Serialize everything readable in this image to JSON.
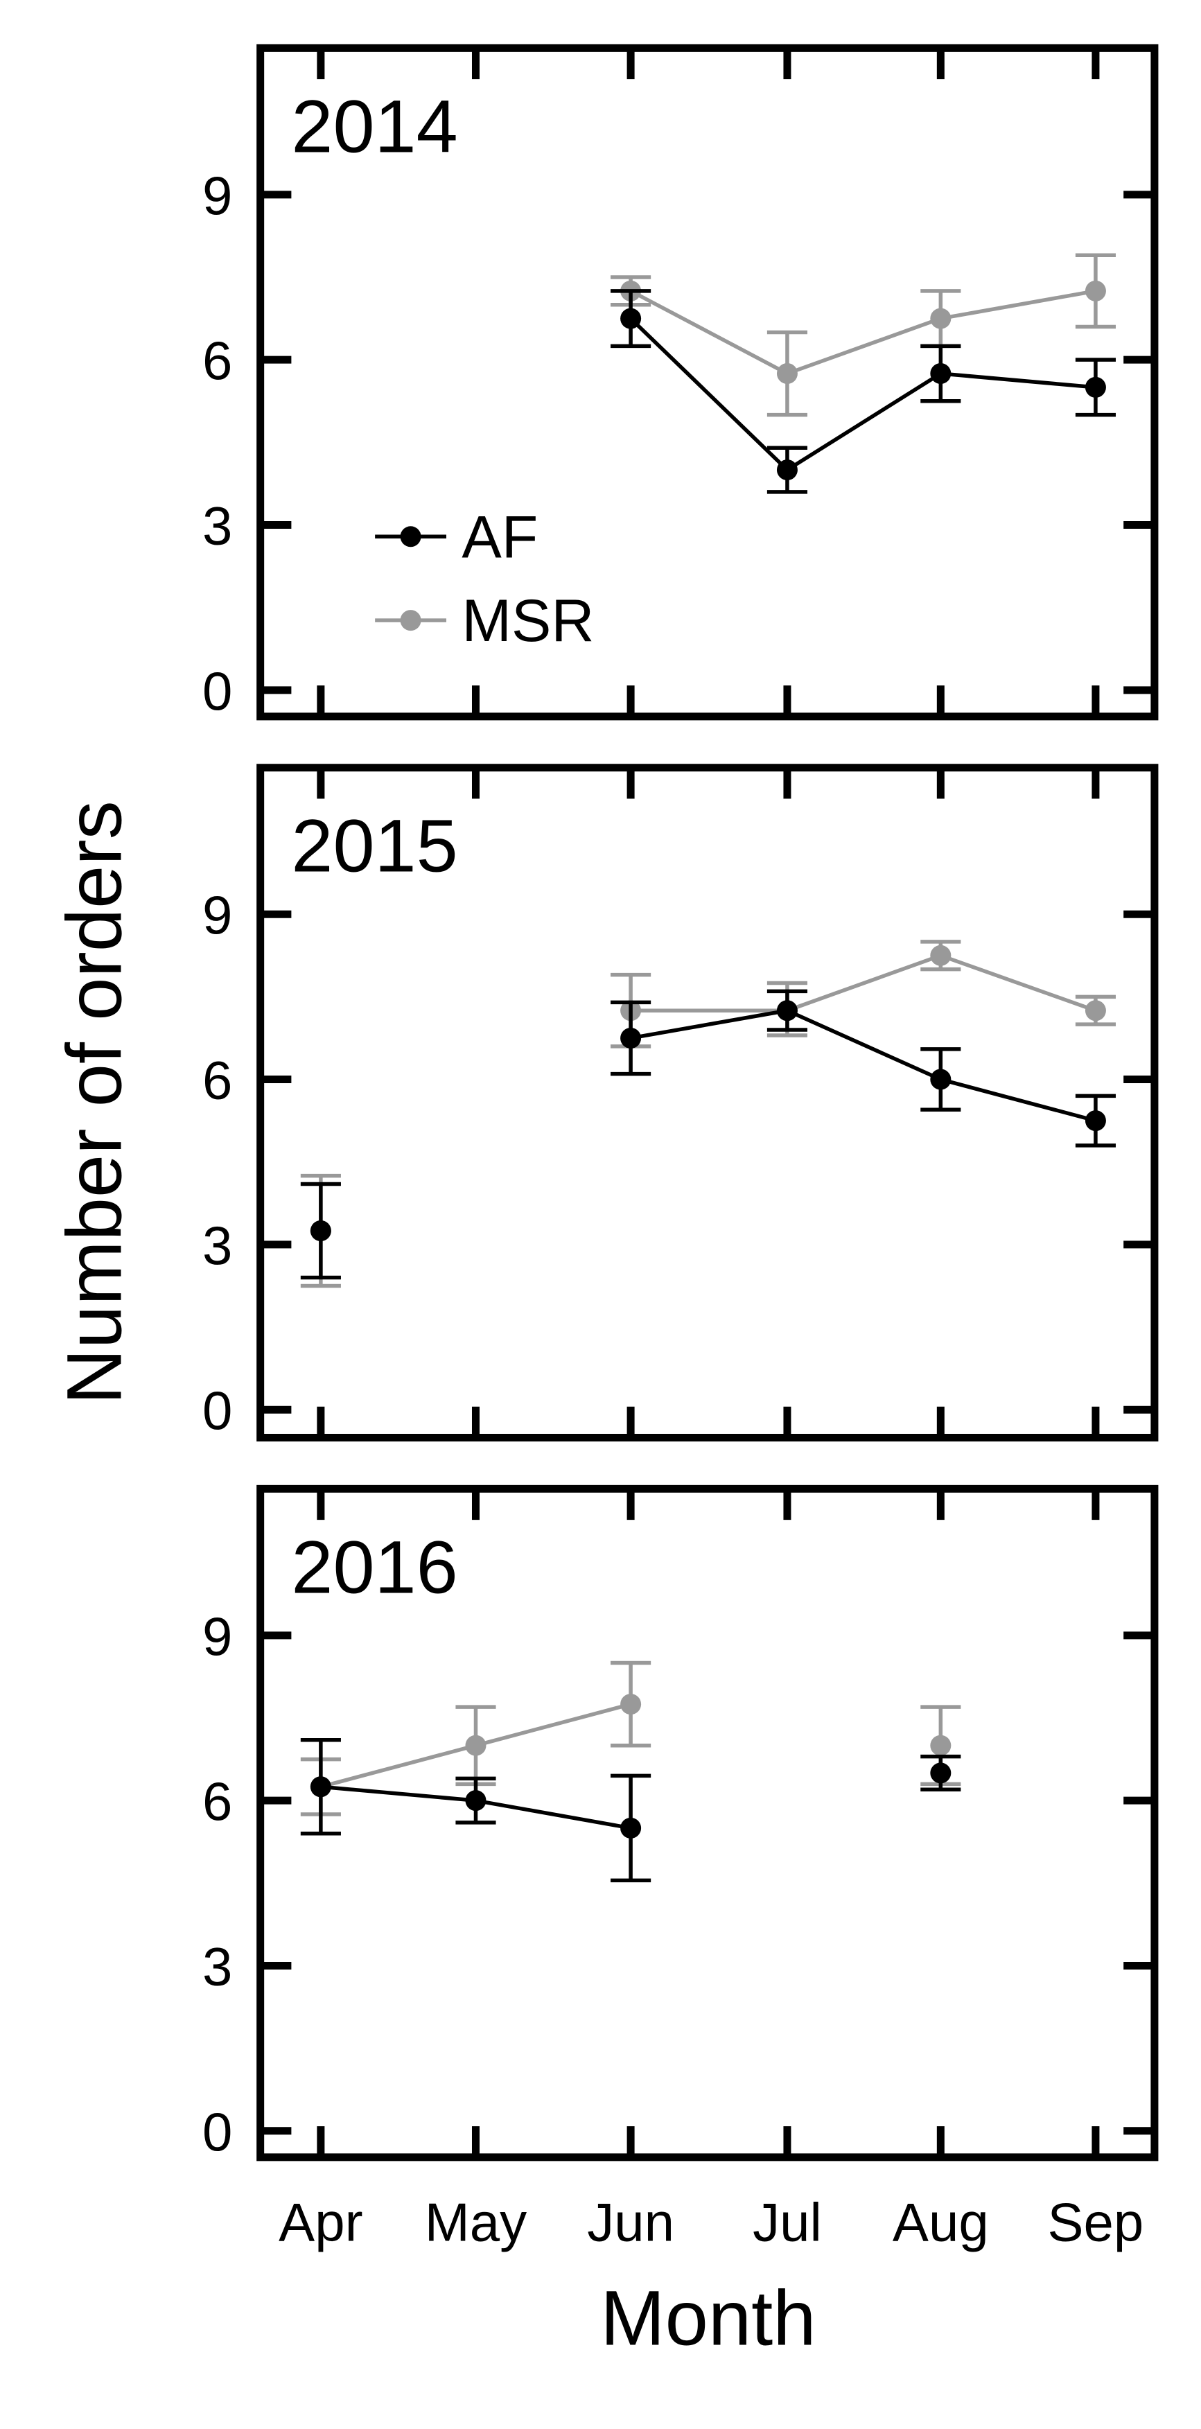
{
  "chart_data": {
    "type": "line",
    "ylabel": "Number of orders",
    "xlabel": "Month",
    "categories": [
      "Apr",
      "May",
      "Jun",
      "Jul",
      "Aug",
      "Sep"
    ],
    "ylim": [
      -0.5,
      11.7
    ],
    "yticks": [
      0,
      3,
      6,
      9
    ],
    "legend": {
      "placement": "lower-left of first panel",
      "entries": [
        "AF",
        "MSR"
      ]
    },
    "series_colors": {
      "AF": "#000000",
      "MSR": "#999999"
    },
    "panels": [
      {
        "year": "2014",
        "series": [
          {
            "name": "AF",
            "values": [
              null,
              null,
              6.75,
              4.0,
              5.75,
              5.5
            ],
            "err_low": [
              null,
              null,
              6.25,
              3.6,
              5.25,
              5.0
            ],
            "err_high": [
              null,
              null,
              7.25,
              4.4,
              6.25,
              6.0
            ]
          },
          {
            "name": "MSR",
            "values": [
              null,
              null,
              7.25,
              5.75,
              6.75,
              7.25
            ],
            "err_low": [
              null,
              null,
              7.0,
              5.0,
              6.25,
              6.6
            ],
            "err_high": [
              null,
              null,
              7.5,
              6.5,
              7.25,
              7.9
            ]
          }
        ]
      },
      {
        "year": "2015",
        "series": [
          {
            "name": "AF",
            "values": [
              3.25,
              null,
              6.75,
              7.25,
              6.0,
              5.25
            ],
            "err_low": [
              2.4,
              null,
              6.1,
              6.9,
              5.45,
              4.8
            ],
            "err_high": [
              4.1,
              null,
              7.4,
              7.6,
              6.55,
              5.7
            ]
          },
          {
            "name": "MSR",
            "values": [
              3.25,
              null,
              7.25,
              7.25,
              8.25,
              7.25
            ],
            "err_low": [
              2.25,
              null,
              6.6,
              6.8,
              8.0,
              7.0
            ],
            "err_high": [
              4.25,
              null,
              7.9,
              7.75,
              8.5,
              7.5
            ]
          }
        ]
      },
      {
        "year": "2016",
        "series": [
          {
            "name": "AF",
            "values": [
              6.25,
              6.0,
              5.5,
              null,
              6.5,
              null
            ],
            "err_low": [
              5.4,
              5.6,
              4.55,
              null,
              6.2,
              null
            ],
            "err_high": [
              7.1,
              6.4,
              6.45,
              null,
              6.8,
              null
            ]
          },
          {
            "name": "MSR",
            "values": [
              6.25,
              7.0,
              7.75,
              null,
              7.0,
              null
            ],
            "err_low": [
              5.75,
              6.3,
              7.0,
              null,
              6.3,
              null
            ],
            "err_high": [
              6.75,
              7.7,
              8.5,
              null,
              7.7,
              null
            ]
          }
        ]
      }
    ]
  }
}
